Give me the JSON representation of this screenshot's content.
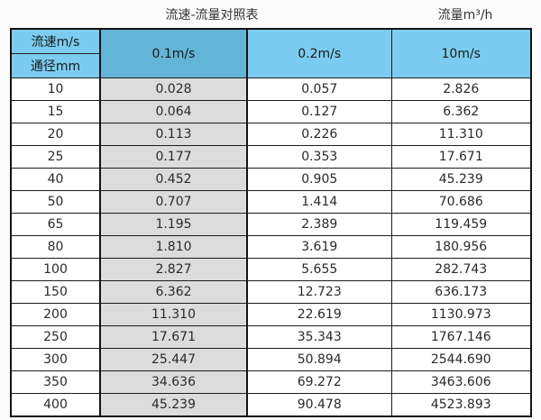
{
  "titles": {
    "left": "流速-流量对照表",
    "right": "流量m³/h"
  },
  "chart_data": {
    "type": "table",
    "title": "流速-流量对照表",
    "unit_title": "流量m³/h",
    "header": {
      "velocity_label": "流速m/s",
      "diameter_label": "通径mm",
      "velocity_columns": [
        "0.1m/s",
        "0.2m/s",
        "10m/s"
      ]
    },
    "diameter_unit": "mm",
    "flow_unit": "m³/h",
    "rows": [
      [
        "10",
        "0.028",
        "0.057",
        "2.826"
      ],
      [
        "15",
        "0.064",
        "0.127",
        "6.362"
      ],
      [
        "20",
        "0.113",
        "0.226",
        "11.310"
      ],
      [
        "25",
        "0.177",
        "0.353",
        "17.671"
      ],
      [
        "40",
        "0.452",
        "0.905",
        "45.239"
      ],
      [
        "50",
        "0.707",
        "1.414",
        "70.686"
      ],
      [
        "65",
        "1.195",
        "2.389",
        "119.459"
      ],
      [
        "80",
        "1.810",
        "3.619",
        "180.956"
      ],
      [
        "100",
        "2.827",
        "5.655",
        "282.743"
      ],
      [
        "150",
        "6.362",
        "12.723",
        "636.173"
      ],
      [
        "200",
        "11.310",
        "22.619",
        "1130.973"
      ],
      [
        "250",
        "17.671",
        "35.343",
        "1767.146"
      ],
      [
        "300",
        "25.447",
        "50.894",
        "2544.690"
      ],
      [
        "350",
        "34.636",
        "69.272",
        "3463.606"
      ],
      [
        "400",
        "45.239",
        "90.478",
        "4523.893"
      ]
    ]
  },
  "colors": {
    "header_blue": "#7bccf0",
    "header_dark_blue": "#63b5d8",
    "shaded_column_gray": "#dcdcdc",
    "border_black": "#141414",
    "page_background": "#fcfcfc"
  }
}
